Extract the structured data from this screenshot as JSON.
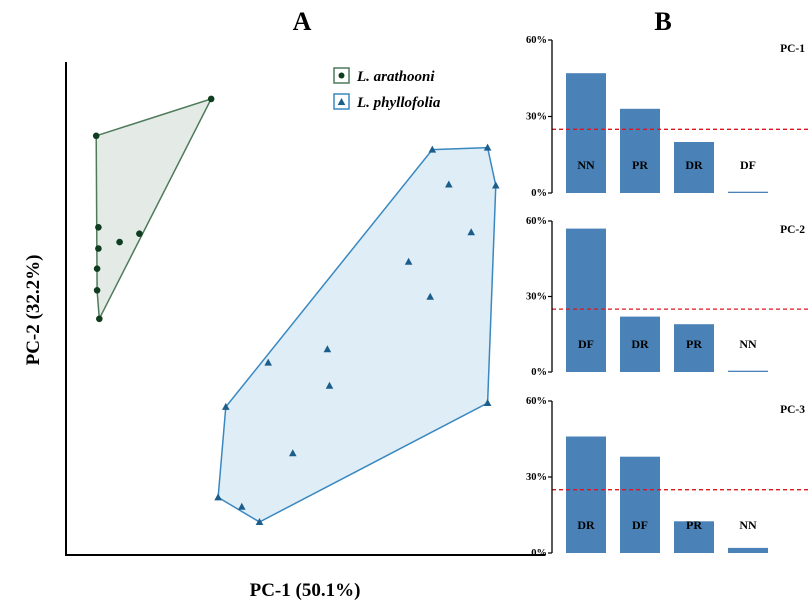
{
  "colors": {
    "green_stroke": "#4f7a5a",
    "green_fill": "#e4ebe6",
    "green_point": "#0f3d1f",
    "blue_stroke": "#3a88c0",
    "blue_fill": "#deedf6",
    "blue_point": "#1b5e8c",
    "bar": "#4a82b8",
    "threshold": "#e0141c"
  },
  "chart_data": [
    {
      "panel": "A",
      "type": "scatter",
      "xlabel": "PC-1 (50.1%)",
      "ylabel": "PC-2 (32.2%)",
      "xlim": [
        0,
        100
      ],
      "ylim": [
        0,
        100
      ],
      "grid": false,
      "legend_position": "top-right",
      "series": [
        {
          "name": "L. arathooni",
          "marker": "circle",
          "hull": true,
          "points": [
            {
              "x": 7.0,
              "y": 85.2
            },
            {
              "x": 33.6,
              "y": 92.7
            },
            {
              "x": 7.5,
              "y": 66.6
            },
            {
              "x": 7.5,
              "y": 62.3
            },
            {
              "x": 7.2,
              "y": 58.2
            },
            {
              "x": 7.2,
              "y": 53.8
            },
            {
              "x": 17.0,
              "y": 65.3
            },
            {
              "x": 12.4,
              "y": 63.6
            },
            {
              "x": 7.7,
              "y": 48.0
            }
          ]
        },
        {
          "name": "L. phyllofolia",
          "marker": "triangle",
          "hull": true,
          "points": [
            {
              "x": 84.8,
              "y": 82.4
            },
            {
              "x": 97.6,
              "y": 82.8
            },
            {
              "x": 88.6,
              "y": 75.3
            },
            {
              "x": 99.5,
              "y": 75.1
            },
            {
              "x": 93.8,
              "y": 65.6
            },
            {
              "x": 79.3,
              "y": 59.6
            },
            {
              "x": 61.0,
              "y": 34.4
            },
            {
              "x": 84.3,
              "y": 52.5
            },
            {
              "x": 46.8,
              "y": 39.1
            },
            {
              "x": 60.5,
              "y": 41.8
            },
            {
              "x": 37.0,
              "y": 30.1
            },
            {
              "x": 97.6,
              "y": 30.9
            },
            {
              "x": 52.5,
              "y": 20.7
            },
            {
              "x": 35.2,
              "y": 11.7
            },
            {
              "x": 40.7,
              "y": 9.8
            },
            {
              "x": 44.8,
              "y": 6.7
            }
          ]
        }
      ]
    },
    {
      "panel": "B",
      "type": "bar",
      "title": "PC-1",
      "ylim": [
        0,
        60
      ],
      "ytick_labels": [
        "0%",
        "30%",
        "60%"
      ],
      "threshold": 25,
      "categories": [
        "NN",
        "PR",
        "DR",
        "DF"
      ],
      "values": [
        47,
        33,
        20,
        0.5
      ]
    },
    {
      "panel": "B",
      "type": "bar",
      "title": "PC-2",
      "ylim": [
        0,
        60
      ],
      "ytick_labels": [
        "0%",
        "30%",
        "60%"
      ],
      "threshold": 25,
      "categories": [
        "DF",
        "DR",
        "PR",
        "NN"
      ],
      "values": [
        57,
        22,
        19,
        0.5
      ]
    },
    {
      "panel": "B",
      "type": "bar",
      "title": "PC-3",
      "ylim": [
        0,
        60
      ],
      "ytick_labels": [
        "0%",
        "30%",
        "60%"
      ],
      "threshold": 25,
      "categories": [
        "DR",
        "DF",
        "PR",
        "NN"
      ],
      "values": [
        46,
        38,
        12.5,
        2
      ]
    }
  ],
  "panels": {
    "a_label": "A",
    "b_label": "B"
  }
}
